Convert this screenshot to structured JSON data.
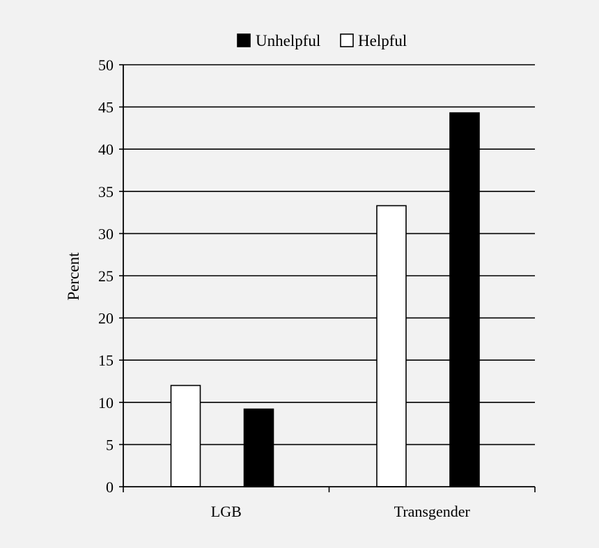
{
  "chart_data": {
    "type": "bar",
    "categories": [
      "LGB",
      "Transgender"
    ],
    "series": [
      {
        "name": "Helpful",
        "color": "#ffffff",
        "values": [
          12,
          33.3
        ]
      },
      {
        "name": "Unhelpful",
        "color": "#000000",
        "values": [
          9.2,
          44.3
        ]
      }
    ],
    "legend": {
      "position": "top",
      "order": [
        "Unhelpful",
        "Helpful"
      ]
    },
    "title": "",
    "xlabel": "",
    "ylabel": "Percent",
    "ylim": [
      0,
      50
    ],
    "yticks": [
      0,
      5,
      10,
      15,
      20,
      25,
      30,
      35,
      40,
      45,
      50
    ],
    "grid": true
  }
}
